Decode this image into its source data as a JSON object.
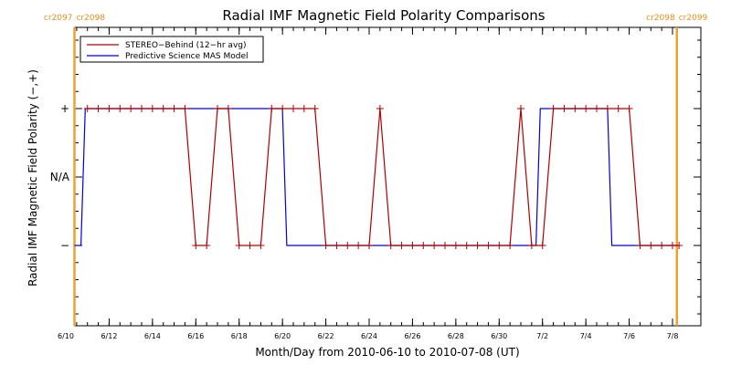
{
  "chart_data": {
    "type": "line",
    "title": "Radial IMF Magnetic Field Polarity Comparisons",
    "xlabel": "Month/Day from 2010-06-10 to 2010-07-08 (UT)",
    "ylabel": "Radial IMF Magnetic Field Polarity (−,+)",
    "x_range": [
      "2010-06-10",
      "2010-07-08"
    ],
    "x_ticks": [
      "6/10",
      "6/12",
      "6/14",
      "6/16",
      "6/18",
      "6/20",
      "6/22",
      "6/24",
      "6/26",
      "6/28",
      "6/30",
      "7/2",
      "7/4",
      "7/6",
      "7/8"
    ],
    "y_ticks": [
      "+",
      "N/A",
      "−"
    ],
    "y_values_meaning": {
      "+": 1,
      "N/A": 0,
      "−": -1
    },
    "ylim": [
      -2,
      2
    ],
    "grid": false,
    "legend_placement": "top-left",
    "carrington_markers": [
      {
        "date": "2010-06-10.4",
        "label_left": "cr2097",
        "label_right": "cr2098"
      },
      {
        "date": "2010-07-08.2",
        "label_left": "cr2098",
        "label_right": "cr2099"
      }
    ],
    "colors": {
      "stereo": "#b00000",
      "mas": "#0000dd",
      "markers": "#f0a030",
      "cr_text": "#e89020"
    },
    "series": [
      {
        "name": "STEREO−Behind (12−hr avg)",
        "style": "line-with-plus-markers",
        "points": [
          [
            "2010-06-11.0",
            1
          ],
          [
            "2010-06-11.5",
            1
          ],
          [
            "2010-06-12.0",
            1
          ],
          [
            "2010-06-12.5",
            1
          ],
          [
            "2010-06-13.0",
            1
          ],
          [
            "2010-06-13.5",
            1
          ],
          [
            "2010-06-14.0",
            1
          ],
          [
            "2010-06-14.5",
            1
          ],
          [
            "2010-06-15.0",
            1
          ],
          [
            "2010-06-15.5",
            1
          ],
          [
            "2010-06-16.0",
            -1
          ],
          [
            "2010-06-16.5",
            -1
          ],
          [
            "2010-06-17.0",
            1
          ],
          [
            "2010-06-17.5",
            1
          ],
          [
            "2010-06-18.0",
            -1
          ],
          [
            "2010-06-18.5",
            -1
          ],
          [
            "2010-06-19.0",
            -1
          ],
          [
            "2010-06-19.5",
            1
          ],
          [
            "2010-06-20.0",
            1
          ],
          [
            "2010-06-20.5",
            1
          ],
          [
            "2010-06-21.0",
            1
          ],
          [
            "2010-06-21.5",
            1
          ],
          [
            "2010-06-22.0",
            -1
          ],
          [
            "2010-06-22.5",
            -1
          ],
          [
            "2010-06-23.0",
            -1
          ],
          [
            "2010-06-23.5",
            -1
          ],
          [
            "2010-06-24.0",
            -1
          ],
          [
            "2010-06-24.5",
            1
          ],
          [
            "2010-06-25.0",
            -1
          ],
          [
            "2010-06-25.5",
            -1
          ],
          [
            "2010-06-26.0",
            -1
          ],
          [
            "2010-06-26.5",
            -1
          ],
          [
            "2010-06-27.0",
            -1
          ],
          [
            "2010-06-27.5",
            -1
          ],
          [
            "2010-06-28.0",
            -1
          ],
          [
            "2010-06-28.5",
            -1
          ],
          [
            "2010-06-29.0",
            -1
          ],
          [
            "2010-06-29.5",
            -1
          ],
          [
            "2010-06-30.0",
            -1
          ],
          [
            "2010-06-30.5",
            -1
          ],
          [
            "2010-07-01.0",
            1
          ],
          [
            "2010-07-01.5",
            -1
          ],
          [
            "2010-07-02.0",
            -1
          ],
          [
            "2010-07-02.5",
            1
          ],
          [
            "2010-07-03.0",
            1
          ],
          [
            "2010-07-03.5",
            1
          ],
          [
            "2010-07-04.0",
            1
          ],
          [
            "2010-07-04.5",
            1
          ],
          [
            "2010-07-05.0",
            1
          ],
          [
            "2010-07-05.5",
            1
          ],
          [
            "2010-07-06.0",
            1
          ],
          [
            "2010-07-06.5",
            -1
          ],
          [
            "2010-07-07.0",
            -1
          ],
          [
            "2010-07-07.5",
            -1
          ],
          [
            "2010-07-08.0",
            -1
          ],
          [
            "2010-07-08.3",
            -1
          ]
        ]
      },
      {
        "name": "Predictive Science MAS Model",
        "style": "step-line",
        "points": [
          [
            "2010-06-10.4",
            -1
          ],
          [
            "2010-06-10.7",
            -1
          ],
          [
            "2010-06-10.9",
            1
          ],
          [
            "2010-06-20.0",
            1
          ],
          [
            "2010-06-20.2",
            -1
          ],
          [
            "2010-07-01.7",
            -1
          ],
          [
            "2010-07-01.9",
            1
          ],
          [
            "2010-07-05.0",
            1
          ],
          [
            "2010-07-05.2",
            -1
          ],
          [
            "2010-07-08.2",
            -1
          ]
        ]
      }
    ]
  }
}
